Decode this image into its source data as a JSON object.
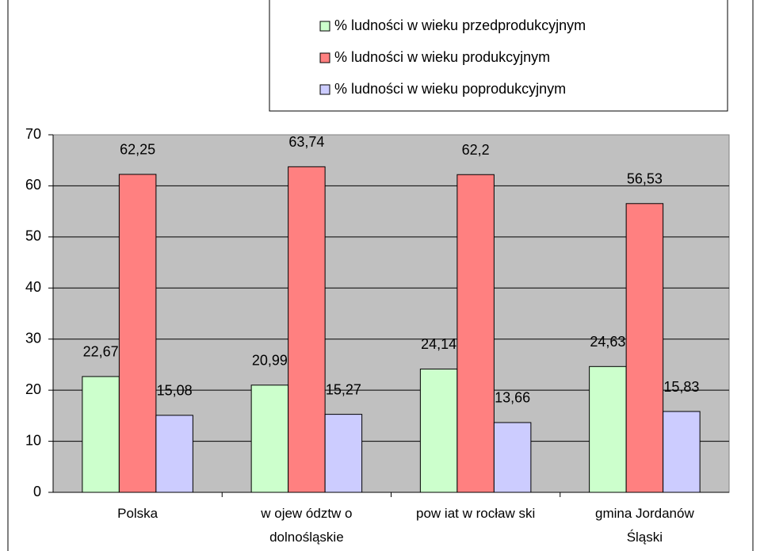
{
  "chart_data": {
    "type": "bar",
    "categories": [
      "Polska",
      "w ojew ództw o dolnośląskie",
      "pow iat w rocław ski",
      "gmina Jordanów Śląski"
    ],
    "series": [
      {
        "name": "% ludności w wieku przedprodukcyjnym",
        "color": "#ccffcc",
        "values": [
          22.67,
          20.99,
          24.14,
          24.63
        ],
        "value_labels": [
          "22,67",
          "20,99",
          "24,14",
          "24,63"
        ]
      },
      {
        "name": "% ludności w wieku produkcyjnym",
        "color": "#ff8080",
        "values": [
          62.25,
          63.74,
          62.2,
          56.53
        ],
        "value_labels": [
          "62,25",
          "63,74",
          "62,2",
          "56,53"
        ]
      },
      {
        "name": "% ludności w wieku poprodukcyjnym",
        "color": "#ccccff",
        "values": [
          15.08,
          15.27,
          13.66,
          15.83
        ],
        "value_labels": [
          "15,08",
          "15,27",
          "13,66",
          "15,83"
        ]
      }
    ],
    "ylim": [
      0,
      70
    ],
    "yticks": [
      0,
      10,
      20,
      30,
      40,
      50,
      60,
      70
    ],
    "grid": true,
    "legend": "top-right"
  }
}
